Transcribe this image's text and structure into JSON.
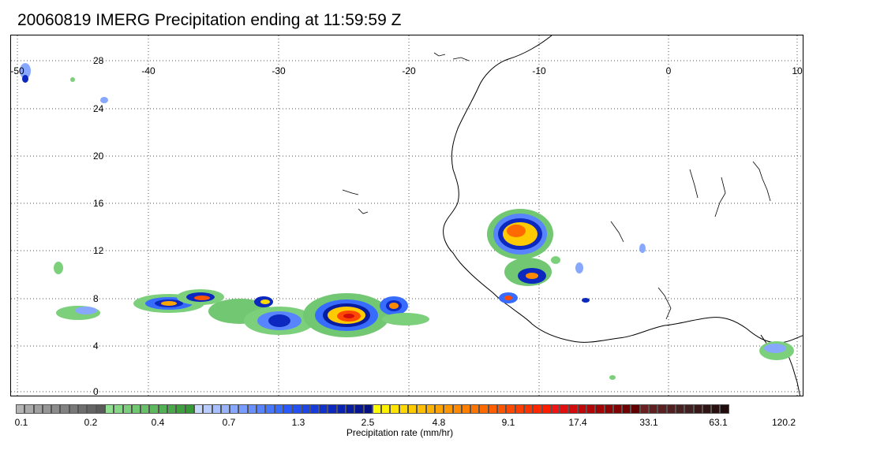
{
  "title": "20060819 IMERG Precipitation ending at 11:59:59 Z",
  "map": {
    "lon_range": [
      -50,
      10
    ],
    "lat_range": [
      -0.5,
      29.5
    ],
    "lon_ticks": [
      "-50",
      "-40",
      "-30",
      "-20",
      "-10",
      "0",
      "10"
    ],
    "lat_ticks": [
      "0",
      "4",
      "8",
      "12",
      "16",
      "20",
      "24",
      "28"
    ],
    "gridlines": true,
    "region": "West Africa and tropical Atlantic"
  },
  "colorbar": {
    "label": "Precipitation rate (mm/hr)",
    "tick_labels": [
      "0.1",
      "0.2",
      "0.4",
      "0.7",
      "1.3",
      "2.5",
      "4.8",
      "9.1",
      "17.4",
      "33.1",
      "63.1",
      "120.2"
    ],
    "colors": [
      "#b4b4b4",
      "#aaaaaa",
      "#a0a0a0",
      "#969696",
      "#8c8c8c",
      "#828282",
      "#787878",
      "#6e6e6e",
      "#646464",
      "#5a5a5a",
      "#90e090",
      "#86d886",
      "#7cd07c",
      "#72c872",
      "#68c068",
      "#5eb85e",
      "#54b054",
      "#4aa84a",
      "#40a040",
      "#369836",
      "#c8d8ff",
      "#b8ccff",
      "#a8c0ff",
      "#98b4ff",
      "#88a8ff",
      "#789cff",
      "#6890ff",
      "#5884ff",
      "#4878ff",
      "#386cff",
      "#2a5aff",
      "#2450f2",
      "#1e46e6",
      "#183cd9",
      "#1232cc",
      "#0c28bf",
      "#0a22b0",
      "#081ca0",
      "#061690",
      "#041080",
      "#ffff00",
      "#fff200",
      "#ffe500",
      "#ffd800",
      "#ffcb00",
      "#ffbe00",
      "#ffb100",
      "#ffa400",
      "#ff9700",
      "#ff8a00",
      "#ff8000",
      "#ff7500",
      "#ff6a00",
      "#ff5f00",
      "#ff5400",
      "#ff4900",
      "#ff3e00",
      "#ff3300",
      "#ff2800",
      "#ff1d00",
      "#f01414",
      "#e01010",
      "#d00c0c",
      "#c00808",
      "#b00606",
      "#a00404",
      "#900303",
      "#800202",
      "#700101",
      "#600000",
      "#682020",
      "#602020",
      "#582020",
      "#502020",
      "#482020",
      "#402020",
      "#381818",
      "#301414",
      "#281010",
      "#200c0c"
    ]
  }
}
